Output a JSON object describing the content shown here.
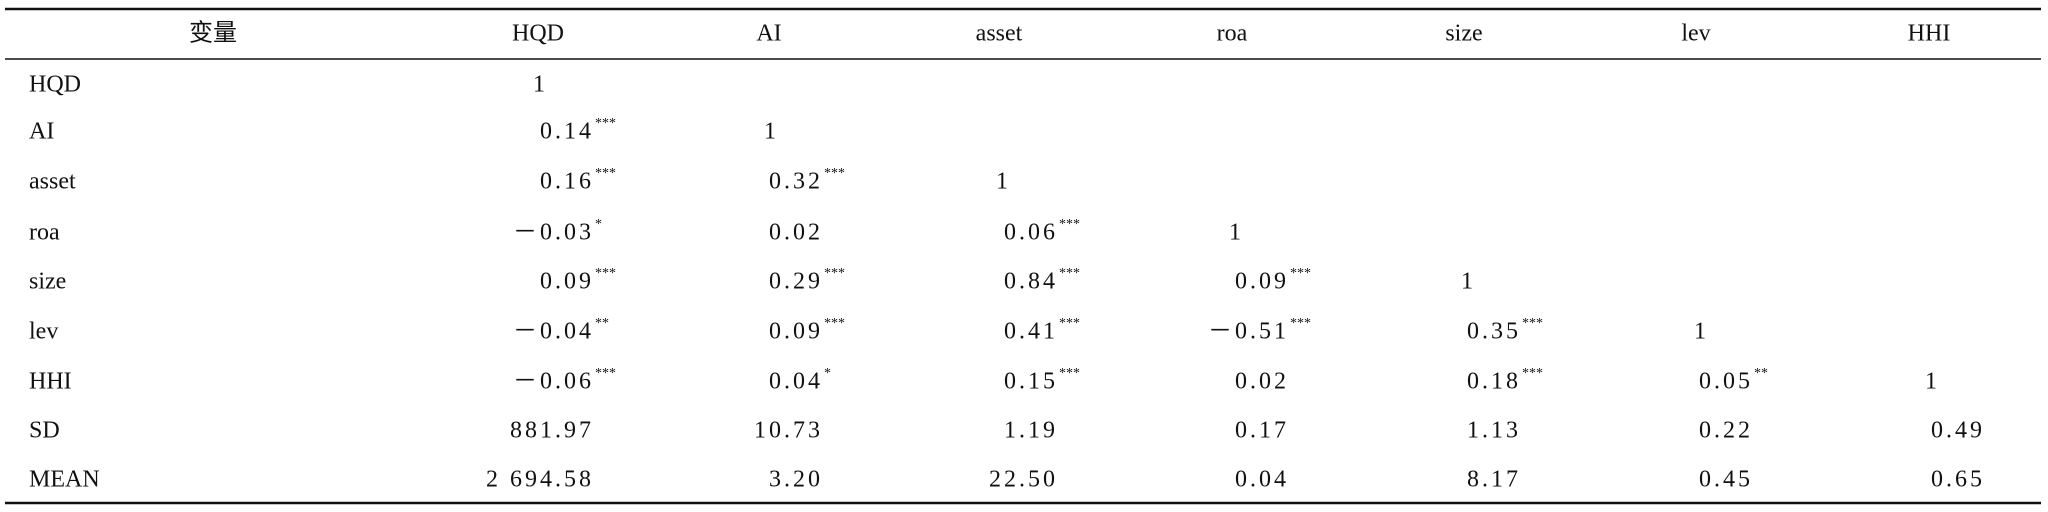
{
  "table": {
    "header": [
      "变量",
      "HQD",
      "AI",
      "asset",
      "roa",
      "size",
      "lev",
      "HHI"
    ],
    "rows": [
      {
        "label": "HQD",
        "cells": [
          {
            "text": "1"
          }
        ]
      },
      {
        "label": "AI",
        "cells": [
          {
            "text": "0.14",
            "stars": "***"
          },
          {
            "text": "1"
          }
        ]
      },
      {
        "label": "asset",
        "cells": [
          {
            "text": "0.16",
            "stars": "***"
          },
          {
            "text": "0.32",
            "stars": "***"
          },
          {
            "text": "1"
          }
        ]
      },
      {
        "label": "roa",
        "cells": [
          {
            "text": "－0.03",
            "stars": "*"
          },
          {
            "text": "0.02"
          },
          {
            "text": "0.06",
            "stars": "***"
          },
          {
            "text": "1"
          }
        ]
      },
      {
        "label": "size",
        "cells": [
          {
            "text": "0.09",
            "stars": "***"
          },
          {
            "text": "0.29",
            "stars": "***"
          },
          {
            "text": "0.84",
            "stars": "***"
          },
          {
            "text": "0.09",
            "stars": "***"
          },
          {
            "text": "1"
          }
        ]
      },
      {
        "label": "lev",
        "cells": [
          {
            "text": "－0.04",
            "stars": "**"
          },
          {
            "text": "0.09",
            "stars": "***"
          },
          {
            "text": "0.41",
            "stars": "***"
          },
          {
            "text": "－0.51",
            "stars": "***"
          },
          {
            "text": "0.35",
            "stars": "***"
          },
          {
            "text": "1"
          }
        ]
      },
      {
        "label": "HHI",
        "cells": [
          {
            "text": "－0.06",
            "stars": "***"
          },
          {
            "text": "0.04",
            "stars": "*"
          },
          {
            "text": "0.15",
            "stars": "***"
          },
          {
            "text": "0.02"
          },
          {
            "text": "0.18",
            "stars": "***"
          },
          {
            "text": "0.05",
            "stars": "**"
          },
          {
            "text": "1"
          }
        ]
      },
      {
        "label": "SD",
        "cells": [
          {
            "text": "881.97"
          },
          {
            "text": "10.73"
          },
          {
            "text": "1.19"
          },
          {
            "text": "0.17"
          },
          {
            "text": "1.13"
          },
          {
            "text": "0.22"
          },
          {
            "text": "0.49"
          }
        ]
      },
      {
        "label": "MEAN",
        "cells": [
          {
            "text": "2 694.58"
          },
          {
            "text": "3.20"
          },
          {
            "text": "22.50"
          },
          {
            "text": "0.04"
          },
          {
            "text": "8.17"
          },
          {
            "text": "0.45"
          },
          {
            "text": "0.65"
          }
        ]
      }
    ]
  }
}
